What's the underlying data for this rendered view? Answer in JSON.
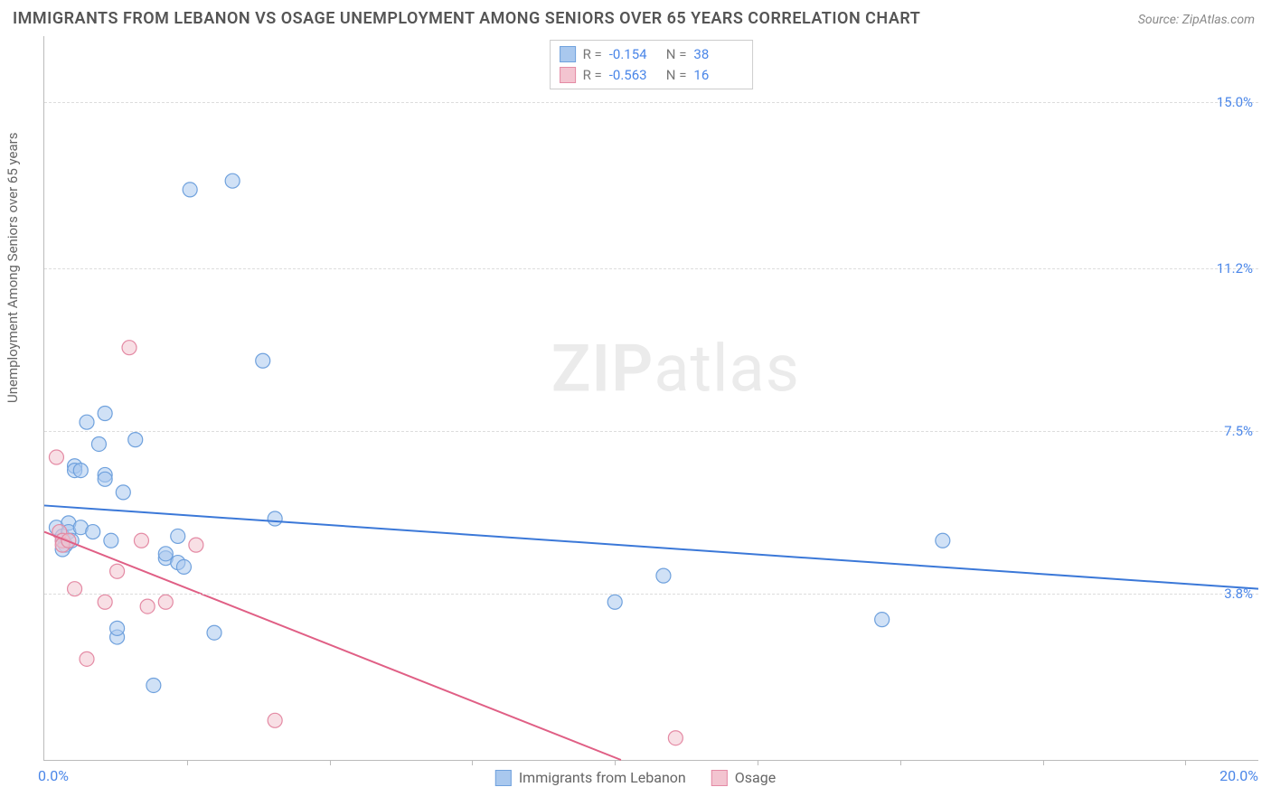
{
  "title": "IMMIGRANTS FROM LEBANON VS OSAGE UNEMPLOYMENT AMONG SENIORS OVER 65 YEARS CORRELATION CHART",
  "source": "Source: ZipAtlas.com",
  "ylabel": "Unemployment Among Seniors over 65 years",
  "watermark_left": "ZIP",
  "watermark_right": "atlas",
  "chart": {
    "type": "scatter",
    "background_color": "#ffffff",
    "grid_color": "#dddddd",
    "axis_color": "#bbbbbb",
    "tick_label_color": "#4a86e8",
    "xlim": [
      0.0,
      20.0
    ],
    "ylim": [
      0.0,
      16.5
    ],
    "x_min_label": "0.0%",
    "x_max_label": "20.0%",
    "y_tick_labels": [
      "3.8%",
      "7.5%",
      "11.2%",
      "15.0%"
    ],
    "y_tick_values": [
      3.8,
      7.5,
      11.2,
      15.0
    ],
    "x_tick_positions": [
      2.35,
      4.7,
      7.05,
      9.4,
      11.75,
      14.1,
      16.45,
      18.8
    ],
    "marker_radius": 8,
    "marker_opacity": 0.55,
    "line_width": 2,
    "title_fontsize": 18,
    "label_fontsize": 15
  },
  "series": [
    {
      "name": "Immigrants from Lebanon",
      "color_fill": "#a9c8ee",
      "color_stroke": "#6fa1dd",
      "line_color": "#3b78d8",
      "R": "-0.154",
      "N": "38",
      "regression": {
        "x1": 0.0,
        "y1": 5.8,
        "x2": 20.0,
        "y2": 3.9
      },
      "points": [
        {
          "x": 0.2,
          "y": 5.3
        },
        {
          "x": 0.3,
          "y": 5.1
        },
        {
          "x": 0.3,
          "y": 5.0
        },
        {
          "x": 0.35,
          "y": 4.9
        },
        {
          "x": 0.4,
          "y": 5.4
        },
        {
          "x": 0.4,
          "y": 5.2
        },
        {
          "x": 0.45,
          "y": 5.0
        },
        {
          "x": 0.5,
          "y": 6.7
        },
        {
          "x": 0.5,
          "y": 6.6
        },
        {
          "x": 0.6,
          "y": 6.6
        },
        {
          "x": 0.6,
          "y": 5.3
        },
        {
          "x": 0.7,
          "y": 7.7
        },
        {
          "x": 0.9,
          "y": 7.2
        },
        {
          "x": 1.0,
          "y": 7.9
        },
        {
          "x": 1.0,
          "y": 6.5
        },
        {
          "x": 1.0,
          "y": 6.4
        },
        {
          "x": 1.1,
          "y": 5.0
        },
        {
          "x": 1.2,
          "y": 2.8
        },
        {
          "x": 1.2,
          "y": 3.0
        },
        {
          "x": 1.3,
          "y": 6.1
        },
        {
          "x": 1.5,
          "y": 7.3
        },
        {
          "x": 1.8,
          "y": 1.7
        },
        {
          "x": 2.0,
          "y": 4.6
        },
        {
          "x": 2.0,
          "y": 4.7
        },
        {
          "x": 2.2,
          "y": 5.1
        },
        {
          "x": 2.2,
          "y": 4.5
        },
        {
          "x": 2.3,
          "y": 4.4
        },
        {
          "x": 2.4,
          "y": 13.0
        },
        {
          "x": 2.8,
          "y": 2.9
        },
        {
          "x": 3.1,
          "y": 13.2
        },
        {
          "x": 3.6,
          "y": 9.1
        },
        {
          "x": 3.8,
          "y": 5.5
        },
        {
          "x": 9.4,
          "y": 3.6
        },
        {
          "x": 10.2,
          "y": 4.2
        },
        {
          "x": 13.8,
          "y": 3.2
        },
        {
          "x": 14.8,
          "y": 5.0
        },
        {
          "x": 0.3,
          "y": 4.8
        },
        {
          "x": 0.8,
          "y": 5.2
        }
      ]
    },
    {
      "name": "Osage",
      "color_fill": "#f3c4d0",
      "color_stroke": "#e48aa4",
      "line_color": "#e05f85",
      "R": "-0.563",
      "N": "16",
      "regression": {
        "x1": 0.0,
        "y1": 5.2,
        "x2": 9.5,
        "y2": 0.0
      },
      "points": [
        {
          "x": 0.2,
          "y": 6.9
        },
        {
          "x": 0.25,
          "y": 5.2
        },
        {
          "x": 0.3,
          "y": 5.0
        },
        {
          "x": 0.3,
          "y": 4.9
        },
        {
          "x": 0.4,
          "y": 5.0
        },
        {
          "x": 0.5,
          "y": 3.9
        },
        {
          "x": 0.7,
          "y": 2.3
        },
        {
          "x": 1.0,
          "y": 3.6
        },
        {
          "x": 1.2,
          "y": 4.3
        },
        {
          "x": 1.4,
          "y": 9.4
        },
        {
          "x": 1.6,
          "y": 5.0
        },
        {
          "x": 1.7,
          "y": 3.5
        },
        {
          "x": 2.0,
          "y": 3.6
        },
        {
          "x": 2.5,
          "y": 4.9
        },
        {
          "x": 3.8,
          "y": 0.9
        },
        {
          "x": 10.4,
          "y": 0.5
        }
      ]
    }
  ],
  "legend_top": {
    "r_label": "R =",
    "n_label": "N ="
  }
}
